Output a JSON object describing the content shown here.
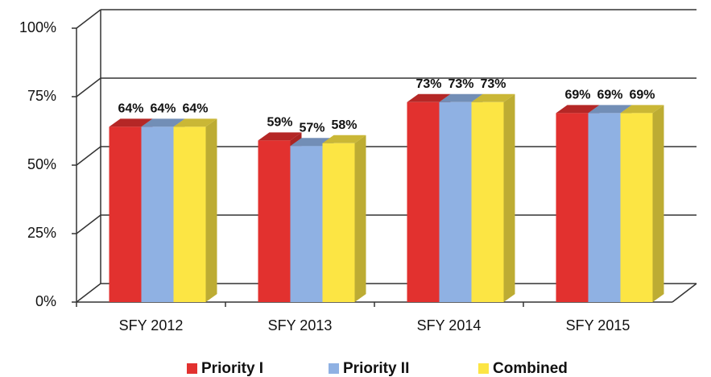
{
  "chart_data": {
    "type": "bar3d",
    "categories": [
      "SFY 2012",
      "SFY 2013",
      "SFY 2014",
      "SFY 2015"
    ],
    "series": [
      {
        "name": "Priority I",
        "color": "#e2312f",
        "values": [
          64,
          59,
          73,
          69
        ],
        "value_labels": [
          "64%",
          "59%",
          "73%",
          "69%"
        ]
      },
      {
        "name": "Priority II",
        "color": "#8fb1e3",
        "values": [
          64,
          57,
          73,
          69
        ],
        "value_labels": [
          "64%",
          "57%",
          "73%",
          "69%"
        ]
      },
      {
        "name": "Combined",
        "color": "#fce544",
        "values": [
          64,
          58,
          73,
          69
        ],
        "value_labels": [
          "64%",
          "58%",
          "73%",
          "69%"
        ]
      }
    ],
    "ylim": [
      0,
      100
    ],
    "yticks": [
      {
        "value": 0,
        "label": "0%"
      },
      {
        "value": 25,
        "label": "25%"
      },
      {
        "value": 50,
        "label": "50%"
      },
      {
        "value": 75,
        "label": "75%"
      },
      {
        "value": 100,
        "label": "100%"
      }
    ],
    "grid": true
  }
}
